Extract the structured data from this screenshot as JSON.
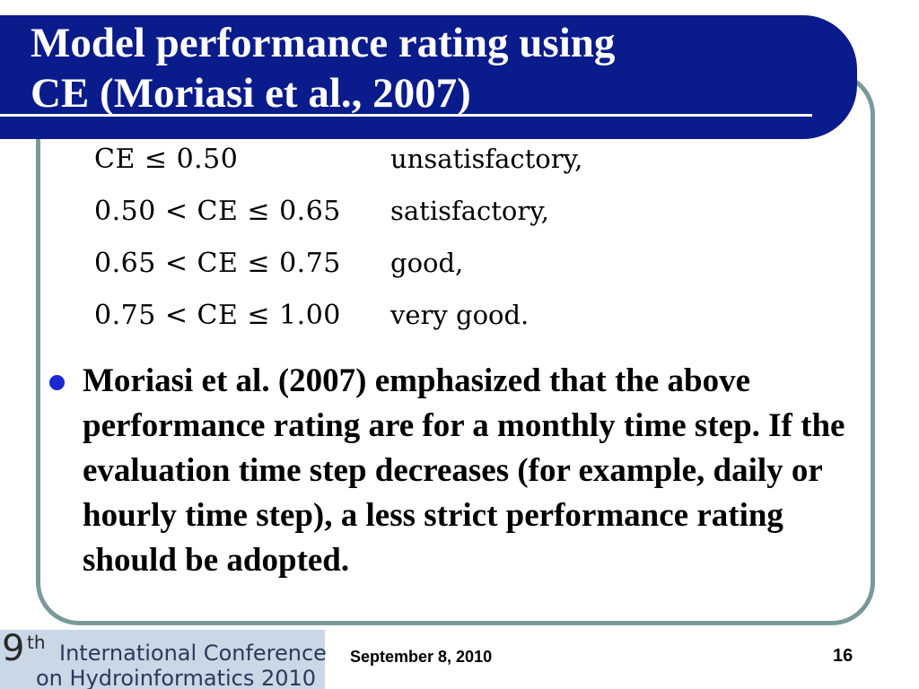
{
  "slide": {
    "title_line1": "Model performance rating using",
    "title_line2": "CE (Moriasi et al., 2007)",
    "ratings": [
      {
        "condition": "CE ≤ 0.50",
        "label": "unsatisfactory,"
      },
      {
        "condition": "0.50 < CE ≤ 0.65",
        "label": "satisfactory,"
      },
      {
        "condition": "0.65 < CE ≤ 0.75",
        "label": "good,"
      },
      {
        "condition": "0.75 < CE ≤ 1.00",
        "label": "very good."
      }
    ],
    "bullet": "Moriasi et al. (2007) emphasized that the above performance rating are for a monthly time step. If the evaluation time step decreases (for example, daily or hourly time step), a less strict performance rating should be adopted."
  },
  "footer": {
    "logo_number": "9",
    "logo_sup": "th",
    "logo_line1": "International Conference",
    "logo_line2": "on Hydroinformatics 2010",
    "date": "September 8, 2010",
    "page_number": "16"
  },
  "colors": {
    "title_bar": "#0a1b8c",
    "frame_border": "#7a9a9a",
    "bullet": "#1a2ad0",
    "logo_bg": "#c9d7e6"
  }
}
